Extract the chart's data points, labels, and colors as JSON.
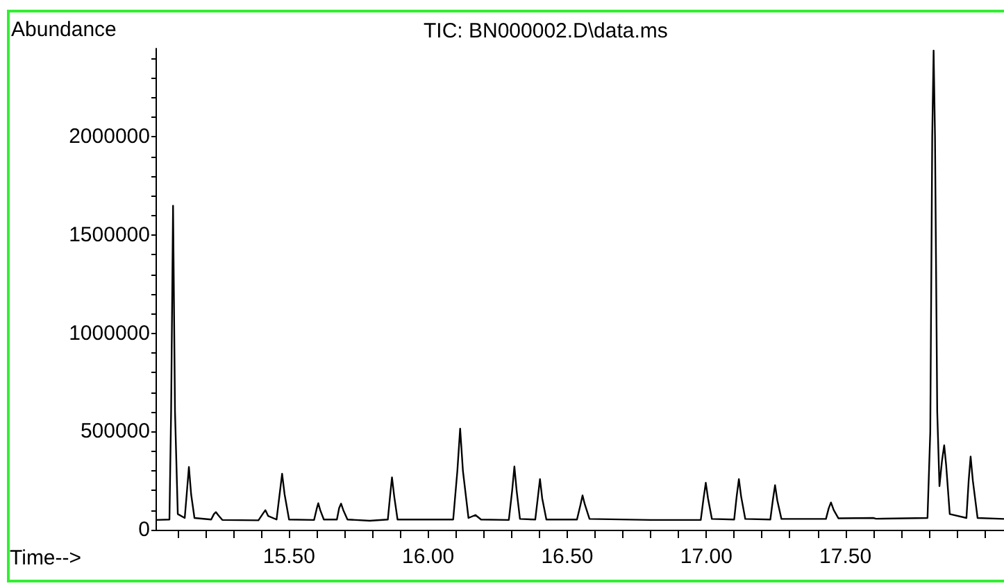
{
  "chart_data": {
    "type": "line",
    "title": "TIC: BN000002.D\\data.ms",
    "xlabel": "Time-->",
    "ylabel": "Abundance",
    "color": "#000000",
    "x": [
      15.02,
      15.07,
      15.076,
      15.083,
      15.09,
      15.1,
      15.125,
      15.132,
      15.14,
      15.148,
      15.16,
      15.22,
      15.23,
      15.237,
      15.245,
      15.26,
      15.39,
      15.405,
      15.415,
      15.425,
      15.455,
      15.466,
      15.475,
      15.484,
      15.5,
      15.59,
      15.6,
      15.605,
      15.612,
      15.625,
      15.672,
      15.68,
      15.687,
      15.695,
      15.71,
      15.79,
      15.855,
      15.863,
      15.87,
      15.878,
      15.89,
      16.09,
      16.105,
      16.115,
      16.125,
      16.145,
      16.17,
      16.19,
      16.29,
      16.302,
      16.31,
      16.318,
      16.33,
      16.385,
      16.394,
      16.402,
      16.41,
      16.425,
      16.535,
      16.548,
      16.555,
      16.563,
      16.58,
      16.8,
      16.98,
      16.99,
      16.998,
      17.006,
      17.02,
      17.1,
      17.109,
      17.117,
      17.125,
      17.14,
      17.23,
      17.239,
      17.247,
      17.255,
      17.27,
      17.43,
      17.44,
      17.448,
      17.458,
      17.475,
      17.6,
      17.61,
      17.795,
      17.805,
      17.812,
      17.817,
      17.822,
      17.83,
      17.838,
      17.847,
      17.855,
      17.862,
      17.875,
      17.935,
      17.943,
      17.95,
      17.958,
      17.975,
      18.07
    ],
    "values": [
      50000,
      52000,
      600000,
      1650000,
      600000,
      80000,
      60000,
      180000,
      320000,
      180000,
      60000,
      52000,
      80000,
      90000,
      75000,
      50000,
      48000,
      80000,
      100000,
      70000,
      52000,
      180000,
      285000,
      180000,
      52000,
      50000,
      110000,
      135000,
      100000,
      52000,
      52000,
      110000,
      133000,
      100000,
      52000,
      46000,
      52000,
      170000,
      267000,
      170000,
      52000,
      52000,
      300000,
      515000,
      300000,
      60000,
      75000,
      52000,
      50000,
      200000,
      322000,
      200000,
      55000,
      52000,
      160000,
      258000,
      160000,
      52000,
      52000,
      130000,
      175000,
      130000,
      55000,
      50000,
      50000,
      160000,
      239000,
      160000,
      55000,
      52000,
      170000,
      258000,
      170000,
      55000,
      52000,
      150000,
      227000,
      150000,
      55000,
      55000,
      110000,
      139000,
      100000,
      58000,
      60000,
      56000,
      60000,
      500000,
      2000000,
      2440000,
      2000000,
      600000,
      222000,
      350000,
      430000,
      330000,
      80000,
      60000,
      250000,
      373000,
      250000,
      60000,
      55000
    ],
    "xlim": [
      15.02,
      18.07
    ],
    "xticks": [
      {
        "value": 15.1,
        "label": null
      },
      {
        "value": 15.2,
        "label": null
      },
      {
        "value": 15.3,
        "label": null
      },
      {
        "value": 15.4,
        "label": null
      },
      {
        "value": 15.5,
        "label": "15.50"
      },
      {
        "value": 15.6,
        "label": null
      },
      {
        "value": 15.7,
        "label": null
      },
      {
        "value": 15.8,
        "label": null
      },
      {
        "value": 15.9,
        "label": null
      },
      {
        "value": 16,
        "label": "16.00"
      },
      {
        "value": 16.1,
        "label": null
      },
      {
        "value": 16.2,
        "label": null
      },
      {
        "value": 16.3,
        "label": null
      },
      {
        "value": 16.4,
        "label": null
      },
      {
        "value": 16.5,
        "label": "16.50"
      },
      {
        "value": 16.6,
        "label": null
      },
      {
        "value": 16.7,
        "label": null
      },
      {
        "value": 16.8,
        "label": null
      },
      {
        "value": 16.9,
        "label": null
      },
      {
        "value": 17,
        "label": "17.00"
      },
      {
        "value": 17.1,
        "label": null
      },
      {
        "value": 17.2,
        "label": null
      },
      {
        "value": 17.3,
        "label": null
      },
      {
        "value": 17.4,
        "label": null
      },
      {
        "value": 17.5,
        "label": "17.50"
      },
      {
        "value": 17.6,
        "label": null
      },
      {
        "value": 17.7,
        "label": null
      },
      {
        "value": 17.8,
        "label": null
      },
      {
        "value": 17.9,
        "label": null
      },
      {
        "value": 18,
        "label": null
      }
    ],
    "ylim": [
      0,
      2450000
    ],
    "yticks": [
      0,
      {
        "value": 100000,
        "label": null
      },
      {
        "value": 200000,
        "label": null
      },
      {
        "value": 300000,
        "label": null
      },
      {
        "value": 400000,
        "label": null
      },
      500000,
      {
        "value": 600000,
        "label": null
      },
      {
        "value": 700000,
        "label": null
      },
      {
        "value": 800000,
        "label": null
      },
      {
        "value": 900000,
        "label": null
      },
      1000000,
      {
        "value": 1100000,
        "label": null
      },
      {
        "value": 1200000,
        "label": null
      },
      {
        "value": 1300000,
        "label": null
      },
      {
        "value": 1400000,
        "label": null
      },
      1500000,
      {
        "value": 1600000,
        "label": null
      },
      {
        "value": 1700000,
        "label": null
      },
      {
        "value": 1800000,
        "label": null
      },
      {
        "value": 1900000,
        "label": null
      },
      2000000,
      {
        "value": 2100000,
        "label": null
      },
      {
        "value": 2200000,
        "label": null
      },
      {
        "value": 2300000,
        "label": null
      },
      {
        "value": 2400000,
        "label": null
      }
    ],
    "grid": false
  }
}
